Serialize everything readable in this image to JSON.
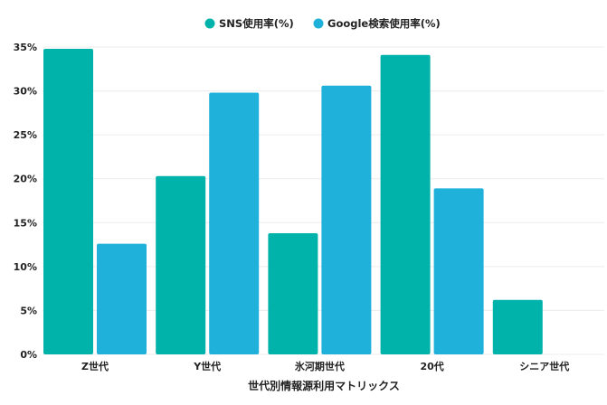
{
  "chart_data": {
    "type": "bar",
    "title": "",
    "xlabel": "世代別情報源利用マトリックス",
    "ylabel": "",
    "categories": [
      "Z世代",
      "Y世代",
      "氷河期世代",
      "20代",
      "シニア世代"
    ],
    "series": [
      {
        "name": "SNS使用率(%)",
        "color": "#00b3aa",
        "values": [
          34.8,
          20.3,
          13.8,
          34.1,
          6.2
        ]
      },
      {
        "name": "Google検索使用率(%)",
        "color": "#1fb1d9",
        "values": [
          12.6,
          29.8,
          30.6,
          18.9,
          null
        ]
      }
    ],
    "ylim": [
      0,
      35
    ],
    "yticks": [
      "0%",
      "5%",
      "10%",
      "15%",
      "20%",
      "25%",
      "30%",
      "35%"
    ],
    "grid": true,
    "legend_position": "top-center"
  }
}
